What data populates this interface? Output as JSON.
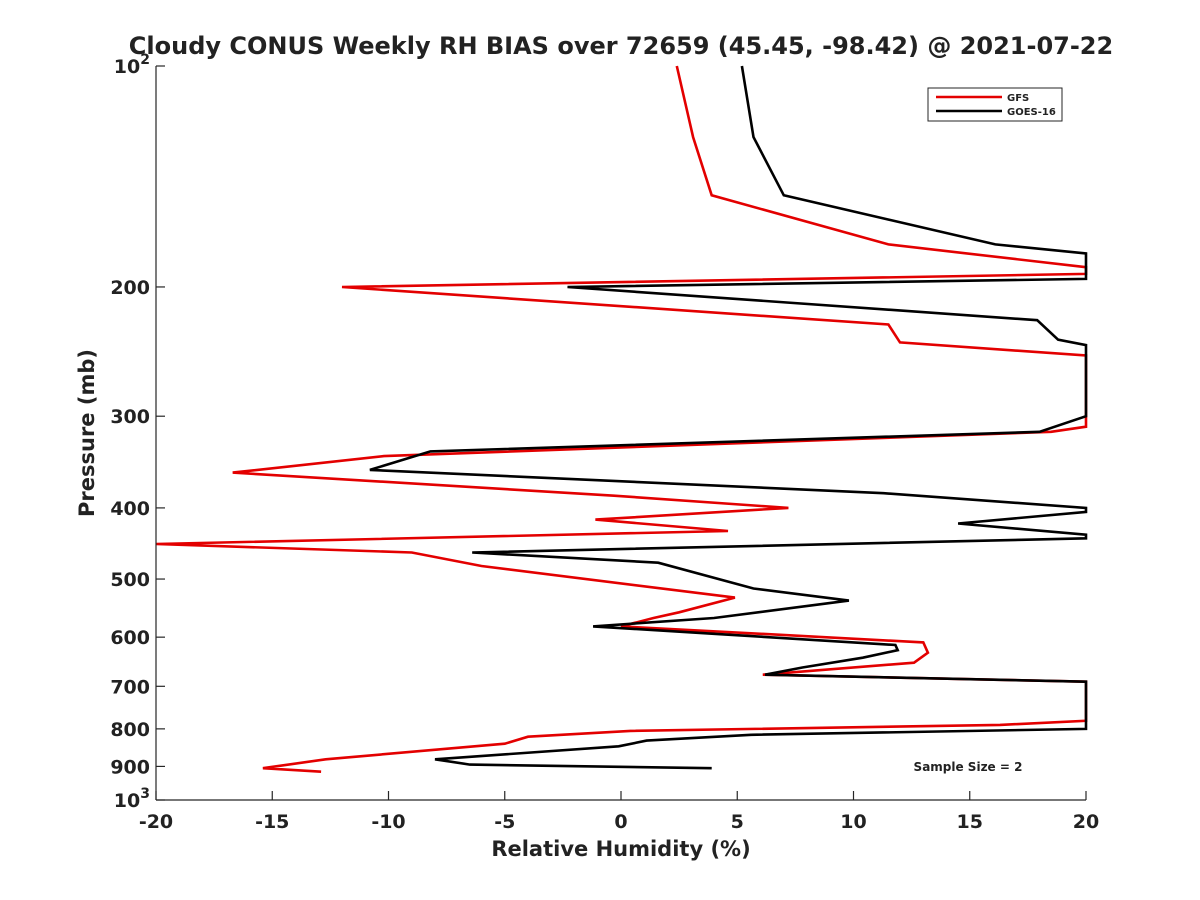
{
  "chart_data": {
    "type": "line",
    "title": "Cloudy CONUS Weekly RH BIAS over 72659 (45.45, -98.42) @ 2021-07-22",
    "xlabel": "Relative Humidity (%)",
    "ylabel": "Pressure (mb)",
    "xlim": [
      -20,
      20
    ],
    "ylim": [
      100,
      1000
    ],
    "yscale": "log",
    "y_reversed": true,
    "grid": false,
    "legend_position": "top-right",
    "x_ticks": [
      "-20",
      "-15",
      "-10",
      "-5",
      "0",
      "5",
      "10",
      "15",
      "20"
    ],
    "y_ticks": [
      {
        "value": 100,
        "base": "10",
        "exp": "2"
      },
      {
        "value": 200,
        "label": "200"
      },
      {
        "value": 300,
        "label": "300"
      },
      {
        "value": 400,
        "label": "400"
      },
      {
        "value": 500,
        "label": "500"
      },
      {
        "value": 600,
        "label": "600"
      },
      {
        "value": 700,
        "label": "700"
      },
      {
        "value": 800,
        "label": "800"
      },
      {
        "value": 900,
        "label": "900"
      },
      {
        "value": 1000,
        "base": "10",
        "exp": "3"
      }
    ],
    "annotation": "Sample Size = 2",
    "series": [
      {
        "name": "GFS",
        "color": "#e30000",
        "points": [
          [
            2.4,
            100
          ],
          [
            3.1,
            125
          ],
          [
            3.9,
            150
          ],
          [
            11.5,
            175
          ],
          [
            20,
            188
          ],
          [
            20,
            192
          ],
          [
            -12,
            200
          ],
          [
            11.5,
            225
          ],
          [
            12,
            238
          ],
          [
            20,
            248
          ],
          [
            20,
            310
          ],
          [
            18.5,
            315
          ],
          [
            -10.2,
            340
          ],
          [
            -16.7,
            358
          ],
          [
            -0.3,
            385
          ],
          [
            7.2,
            400
          ],
          [
            -1.1,
            415
          ],
          [
            4.6,
            430
          ],
          [
            -20,
            448
          ],
          [
            -9,
            460
          ],
          [
            -6,
            480
          ],
          [
            4.9,
            530
          ],
          [
            2.5,
            555
          ],
          [
            1.4,
            565
          ],
          [
            0,
            580
          ],
          [
            13,
            610
          ],
          [
            13.2,
            630
          ],
          [
            12.6,
            650
          ],
          [
            6.1,
            675
          ],
          [
            20,
            690
          ],
          [
            20,
            780
          ],
          [
            16.3,
            790
          ],
          [
            0.4,
            805
          ],
          [
            -4,
            820
          ],
          [
            -5,
            838
          ],
          [
            -12.7,
            880
          ],
          [
            -15.4,
            905
          ],
          [
            -12.9,
            915
          ]
        ]
      },
      {
        "name": "GOES-16",
        "color": "#000000",
        "points": [
          [
            5.2,
            100
          ],
          [
            5.7,
            125
          ],
          [
            7,
            150
          ],
          [
            16.1,
            175
          ],
          [
            20,
            180
          ],
          [
            20,
            195
          ],
          [
            -2.3,
            200
          ],
          [
            17.9,
            222
          ],
          [
            18.8,
            236
          ],
          [
            20,
            240
          ],
          [
            20,
            300
          ],
          [
            18,
            315
          ],
          [
            -8.2,
            335
          ],
          [
            -10.8,
            355
          ],
          [
            11.3,
            382
          ],
          [
            20,
            400
          ],
          [
            20,
            405
          ],
          [
            14.5,
            420
          ],
          [
            20,
            435
          ],
          [
            20,
            440
          ],
          [
            -6.4,
            460
          ],
          [
            1.6,
            475
          ],
          [
            5.7,
            515
          ],
          [
            9.8,
            535
          ],
          [
            4,
            565
          ],
          [
            -1.2,
            580
          ],
          [
            11.8,
            615
          ],
          [
            11.9,
            625
          ],
          [
            10.4,
            640
          ],
          [
            7.8,
            660
          ],
          [
            6.2,
            675
          ],
          [
            20,
            690
          ],
          [
            20,
            800
          ],
          [
            5.6,
            815
          ],
          [
            1.1,
            830
          ],
          [
            -0.1,
            845
          ],
          [
            -8,
            880
          ],
          [
            -6.5,
            895
          ],
          [
            3.9,
            905
          ]
        ]
      }
    ]
  }
}
